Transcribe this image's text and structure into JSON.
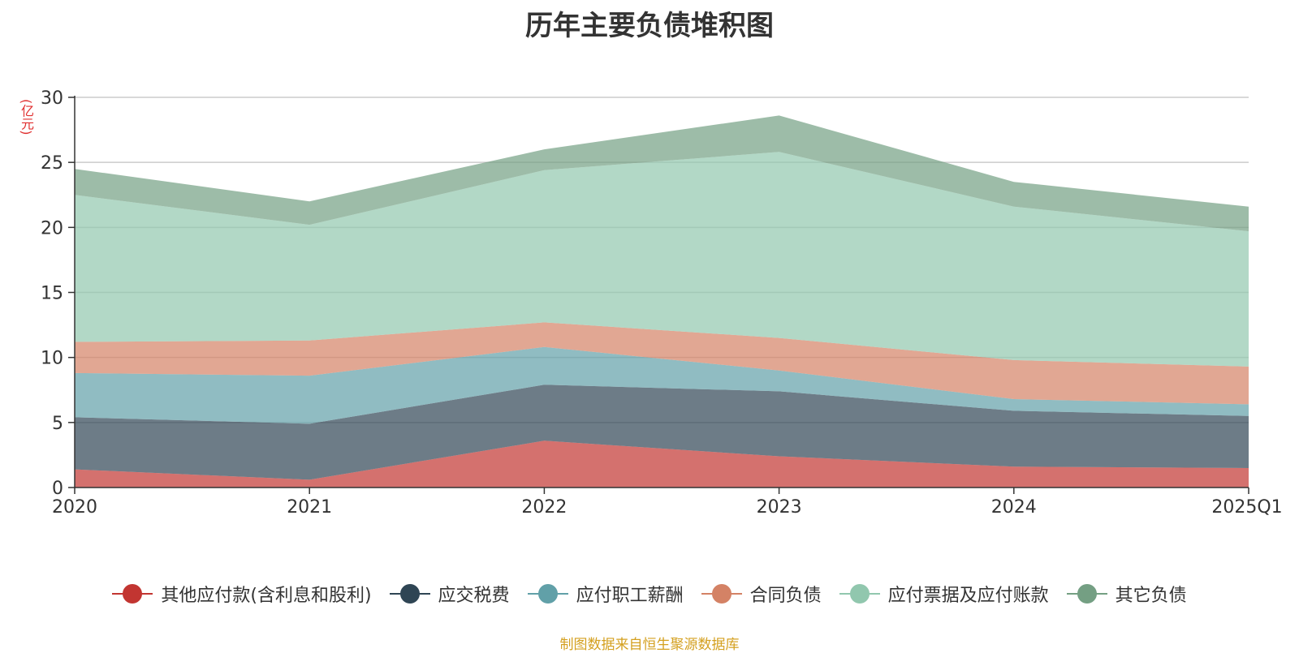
{
  "chart_data": {
    "type": "area",
    "stacked": true,
    "title": "历年主要负债堆积图",
    "ylabel": "(亿元)",
    "xlabel": "",
    "categories": [
      "2020",
      "2021",
      "2022",
      "2023",
      "2024",
      "2025Q1"
    ],
    "ylim": [
      0,
      30
    ],
    "yticks": [
      0,
      5,
      10,
      15,
      20,
      25,
      30
    ],
    "grid": true,
    "legend_position": "bottom",
    "series": [
      {
        "name": "其他应付款(含利息和股利)",
        "color": "#c23531",
        "values": [
          1.4,
          0.6,
          3.6,
          2.4,
          1.6,
          1.5
        ]
      },
      {
        "name": "应交税费",
        "color": "#2f4554",
        "values": [
          4.0,
          4.3,
          4.3,
          5.0,
          4.3,
          4.0
        ]
      },
      {
        "name": "应付职工薪酬",
        "color": "#61a0a8",
        "values": [
          3.4,
          3.7,
          2.9,
          1.6,
          0.9,
          0.9
        ]
      },
      {
        "name": "合同负债",
        "color": "#d48265",
        "values": [
          2.4,
          2.7,
          1.9,
          2.5,
          3.0,
          2.9
        ]
      },
      {
        "name": "应付票据及应付账款",
        "color": "#91c7ae",
        "values": [
          11.3,
          8.9,
          11.7,
          14.3,
          11.8,
          10.4
        ]
      },
      {
        "name": "其它负债",
        "color": "#749f83",
        "values": [
          2.0,
          1.8,
          1.6,
          2.8,
          1.9,
          1.9
        ]
      }
    ]
  },
  "source_note": "制图数据来自恒生聚源数据库"
}
